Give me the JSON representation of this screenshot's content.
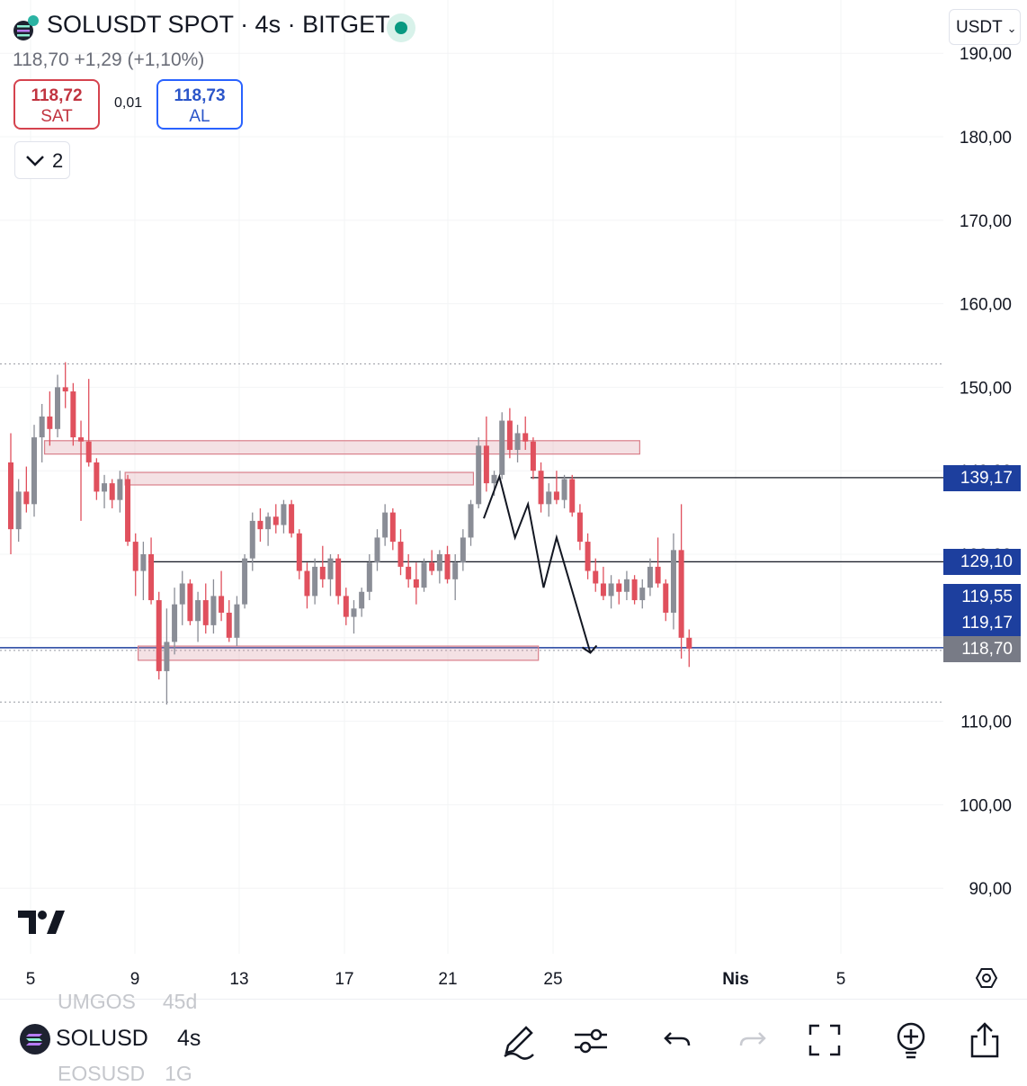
{
  "header": {
    "title": "SOLUSDT SPOT · 4s · BITGET",
    "last_price": "118,70",
    "change": "+1,29",
    "change_pct": "(+1,10%)",
    "currency": "USDT"
  },
  "trade": {
    "sell_price": "118,72",
    "sell_label": "SAT",
    "buy_price": "118,73",
    "buy_label": "AL",
    "spread": "0,01"
  },
  "indicators_toggle": {
    "count": "2"
  },
  "chart_data": {
    "type": "candlestick",
    "y_ticks": [
      "90,00",
      "100,00",
      "110,00",
      "120,00",
      "130,00",
      "140,00",
      "150,00",
      "160,00",
      "170,00",
      "180,00",
      "190,00"
    ],
    "x_ticks": [
      "5",
      "9",
      "13",
      "17",
      "21",
      "25",
      "Nis",
      "5"
    ],
    "ylim": [
      85,
      195
    ],
    "price_tags": [
      {
        "label": "139,17",
        "value": 139.17,
        "color": "#1d3f9e"
      },
      {
        "label": "129,10",
        "value": 129.1,
        "color": "#1d3f9e"
      },
      {
        "label": "119,55",
        "value": 119.55,
        "color": "#1d3f9e"
      },
      {
        "label": "119,17",
        "value": 119.17,
        "color": "#1d3f9e"
      },
      {
        "label": "118,70",
        "value": 118.7,
        "color": "#787b86"
      }
    ],
    "horizontal_lines": [
      139.17,
      129.1
    ],
    "dotted_levels": [
      152.8,
      112.3
    ],
    "zones": [
      {
        "from_day": 1.3,
        "to_day": 24.2,
        "low": 142.0,
        "high": 143.6
      },
      {
        "from_day": 4.4,
        "to_day": 17.8,
        "low": 138.3,
        "high": 139.8
      },
      {
        "from_day": 4.9,
        "to_day": 20.3,
        "low": 117.3,
        "high": 119.0
      }
    ],
    "candles": [
      [
        0.0,
        141.0,
        144.5,
        130.0,
        133.0
      ],
      [
        0.3,
        133.0,
        139.0,
        131.5,
        137.5
      ],
      [
        0.6,
        137.5,
        140.5,
        135.0,
        136.0
      ],
      [
        0.9,
        136.0,
        145.5,
        134.5,
        144.0
      ],
      [
        1.2,
        144.0,
        148.0,
        141.0,
        146.5
      ],
      [
        1.5,
        146.5,
        149.5,
        143.0,
        145.0
      ],
      [
        1.8,
        145.0,
        151.5,
        144.0,
        150.0
      ],
      [
        2.1,
        150.0,
        153.0,
        147.5,
        149.5
      ],
      [
        2.4,
        149.5,
        150.5,
        143.0,
        144.0
      ],
      [
        2.7,
        144.0,
        146.0,
        134.0,
        143.5
      ],
      [
        3.0,
        143.5,
        151.0,
        140.5,
        141.0
      ],
      [
        3.3,
        141.0,
        141.5,
        136.5,
        137.5
      ],
      [
        3.6,
        137.5,
        139.5,
        135.5,
        138.5
      ],
      [
        3.9,
        138.5,
        139.0,
        135.5,
        136.5
      ],
      [
        4.2,
        136.5,
        140.0,
        135.0,
        139.0
      ],
      [
        4.5,
        139.0,
        139.5,
        131.0,
        131.5
      ],
      [
        4.8,
        131.5,
        132.5,
        125.0,
        128.0
      ],
      [
        5.1,
        128.0,
        131.5,
        124.5,
        130.0
      ],
      [
        5.4,
        130.0,
        132.0,
        124.0,
        124.5
      ],
      [
        5.7,
        124.5,
        125.5,
        115.0,
        116.0
      ],
      [
        6.0,
        116.0,
        123.5,
        112.0,
        119.5
      ],
      [
        6.3,
        119.5,
        126.0,
        118.0,
        124.0
      ],
      [
        6.6,
        124.0,
        128.0,
        121.5,
        126.5
      ],
      [
        6.9,
        126.5,
        127.0,
        121.5,
        122.0
      ],
      [
        7.2,
        122.0,
        125.5,
        119.5,
        124.5
      ],
      [
        7.5,
        124.5,
        126.5,
        120.5,
        121.5
      ],
      [
        7.8,
        121.5,
        127.0,
        120.5,
        125.0
      ],
      [
        8.1,
        125.0,
        128.0,
        122.0,
        123.0
      ],
      [
        8.4,
        123.0,
        124.5,
        119.5,
        120.0
      ],
      [
        8.7,
        120.0,
        125.0,
        119.0,
        124.0
      ],
      [
        9.0,
        124.0,
        130.0,
        123.5,
        129.5
      ],
      [
        9.3,
        129.5,
        135.0,
        128.0,
        134.0
      ],
      [
        9.6,
        134.0,
        135.5,
        131.5,
        133.0
      ],
      [
        9.9,
        133.0,
        135.0,
        131.0,
        134.5
      ],
      [
        10.2,
        134.5,
        136.0,
        132.5,
        133.5
      ],
      [
        10.5,
        133.5,
        136.5,
        132.5,
        136.0
      ],
      [
        10.8,
        136.0,
        136.5,
        132.0,
        132.5
      ],
      [
        11.1,
        132.5,
        133.0,
        127.0,
        128.0
      ],
      [
        11.4,
        128.0,
        129.0,
        123.5,
        125.0
      ],
      [
        11.7,
        125.0,
        129.5,
        124.0,
        128.5
      ],
      [
        12.0,
        128.5,
        131.0,
        126.0,
        127.0
      ],
      [
        12.3,
        127.0,
        130.0,
        125.0,
        129.5
      ],
      [
        12.6,
        129.5,
        130.0,
        124.0,
        125.0
      ],
      [
        12.9,
        125.0,
        126.0,
        121.5,
        122.5
      ],
      [
        13.2,
        122.5,
        124.5,
        120.5,
        123.5
      ],
      [
        13.5,
        123.5,
        126.0,
        122.5,
        125.5
      ],
      [
        13.8,
        125.5,
        130.0,
        124.5,
        129.0
      ],
      [
        14.1,
        129.0,
        133.0,
        128.0,
        132.0
      ],
      [
        14.4,
        132.0,
        136.0,
        131.0,
        135.0
      ],
      [
        14.7,
        135.0,
        135.5,
        130.5,
        131.5
      ],
      [
        15.0,
        131.5,
        133.0,
        127.5,
        128.5
      ],
      [
        15.3,
        128.5,
        130.0,
        126.0,
        127.0
      ],
      [
        15.6,
        127.0,
        129.0,
        124.0,
        126.0
      ],
      [
        15.9,
        126.0,
        129.5,
        125.5,
        129.0
      ],
      [
        16.2,
        129.0,
        130.5,
        127.5,
        128.0
      ],
      [
        16.5,
        128.0,
        130.5,
        126.5,
        130.0
      ],
      [
        16.8,
        130.0,
        131.0,
        126.5,
        127.0
      ],
      [
        17.1,
        127.0,
        130.0,
        124.5,
        129.0
      ],
      [
        17.4,
        129.0,
        133.0,
        128.0,
        132.0
      ],
      [
        17.7,
        132.0,
        136.5,
        131.0,
        136.0
      ],
      [
        18.0,
        136.0,
        144.0,
        135.5,
        143.0
      ],
      [
        18.3,
        143.0,
        146.5,
        137.5,
        138.5
      ],
      [
        18.6,
        138.5,
        140.0,
        137.0,
        139.5
      ],
      [
        18.9,
        139.5,
        147.0,
        139.0,
        146.0
      ],
      [
        19.2,
        146.0,
        147.5,
        141.5,
        142.5
      ],
      [
        19.5,
        142.5,
        145.5,
        141.0,
        144.5
      ],
      [
        19.8,
        144.5,
        146.5,
        142.5,
        143.5
      ],
      [
        20.1,
        143.5,
        144.0,
        139.0,
        140.0
      ],
      [
        20.4,
        140.0,
        141.0,
        135.0,
        136.0
      ],
      [
        20.7,
        136.0,
        138.5,
        134.5,
        137.5
      ],
      [
        21.0,
        137.5,
        140.0,
        136.0,
        136.5
      ],
      [
        21.3,
        136.5,
        139.5,
        135.5,
        139.0
      ],
      [
        21.6,
        139.0,
        139.5,
        134.5,
        135.0
      ],
      [
        21.9,
        135.0,
        136.0,
        130.5,
        131.5
      ],
      [
        22.2,
        131.5,
        132.5,
        127.0,
        128.0
      ],
      [
        22.5,
        128.0,
        129.5,
        125.5,
        126.5
      ],
      [
        22.8,
        126.5,
        128.5,
        124.5,
        125.0
      ],
      [
        23.1,
        125.0,
        127.5,
        123.5,
        126.5
      ],
      [
        23.4,
        126.5,
        127.0,
        124.0,
        125.5
      ],
      [
        23.7,
        125.5,
        128.0,
        124.5,
        127.0
      ],
      [
        24.0,
        127.0,
        127.5,
        124.0,
        124.5
      ],
      [
        24.3,
        124.5,
        127.0,
        123.5,
        126.0
      ],
      [
        24.6,
        126.0,
        129.5,
        125.0,
        128.5
      ],
      [
        24.9,
        128.5,
        132.0,
        126.0,
        126.5
      ],
      [
        25.2,
        126.5,
        127.0,
        122.0,
        123.0
      ],
      [
        25.5,
        123.0,
        132.5,
        121.0,
        130.5
      ],
      [
        25.8,
        130.5,
        136.0,
        117.5,
        120.0
      ],
      [
        26.1,
        120.0,
        121.0,
        116.5,
        118.7
      ]
    ],
    "annotation_path": [
      [
        18.2,
        134.3
      ],
      [
        18.8,
        139.3
      ],
      [
        19.4,
        132.0
      ],
      [
        19.9,
        136.0
      ],
      [
        20.5,
        126.0
      ],
      [
        21.0,
        132.0
      ],
      [
        22.3,
        118.2
      ]
    ]
  },
  "bottom": {
    "symbol": "SOLUSD",
    "timeframe": "4s",
    "prev_symbol": "UMGOS",
    "prev_tf": "45d",
    "next_symbol": "EOSUSD",
    "next_tf": "1G"
  }
}
